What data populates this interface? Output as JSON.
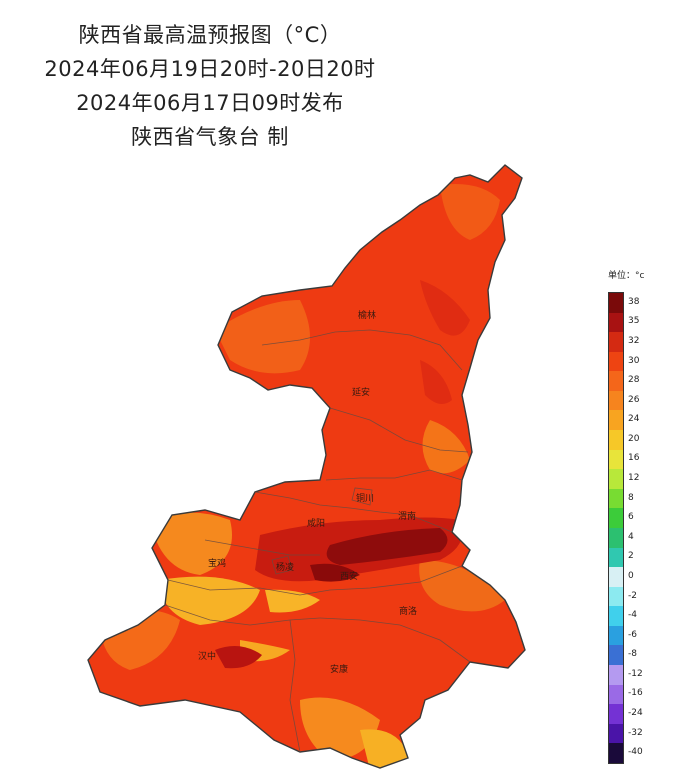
{
  "header": {
    "title": "陕西省最高温预报图（°C）",
    "period": "2024年06月19日20时-20日20时",
    "issued": "2024年06月17日09时发布",
    "producer": "陕西省气象台 制"
  },
  "map": {
    "region": "陕西省",
    "cities": [
      {
        "name": "榆林"
      },
      {
        "name": "延安"
      },
      {
        "name": "铜川"
      },
      {
        "name": "渭南"
      },
      {
        "name": "咸阳"
      },
      {
        "name": "宝鸡"
      },
      {
        "name": "杨凌"
      },
      {
        "name": "西安"
      },
      {
        "name": "商洛"
      },
      {
        "name": "汉中"
      },
      {
        "name": "安康"
      }
    ]
  },
  "legend": {
    "unit_label": "单位：°c",
    "ticks": [
      "38",
      "35",
      "32",
      "30",
      "28",
      "26",
      "24",
      "20",
      "16",
      "12",
      "8",
      "6",
      "4",
      "2",
      "0",
      "-2",
      "-4",
      "-6",
      "-8",
      "-12",
      "-16",
      "-24",
      "-32",
      "-40"
    ],
    "colors": [
      "#7a0a0a",
      "#a81212",
      "#d42a12",
      "#ee4412",
      "#f4661a",
      "#f6841e",
      "#f8a420",
      "#f6c828",
      "#e8e43a",
      "#b8e83a",
      "#78dc32",
      "#3ccc3a",
      "#2cc070",
      "#30c8b0",
      "#d8f0f4",
      "#8ceaf0",
      "#40d0ec",
      "#2aa0e0",
      "#3a70d4",
      "#b49af0",
      "#9a6ae6",
      "#7432d4",
      "#4a14a8",
      "#1a0a3a"
    ]
  }
}
